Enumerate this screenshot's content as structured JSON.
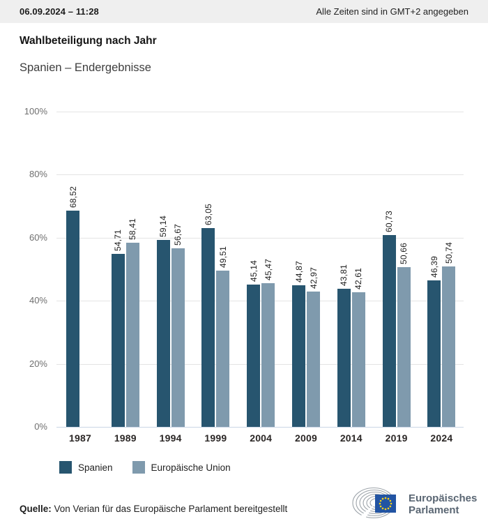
{
  "header": {
    "datetime": "06.09.2024 – 11:28",
    "timezone_note": "Alle Zeiten sind in GMT+2 angegeben"
  },
  "title": "Wahlbeteiligung nach Jahr",
  "subtitle": "Spanien – Endergebnisse",
  "chart_data": {
    "type": "bar",
    "title": "Wahlbeteiligung nach Jahr",
    "subtitle": "Spanien – Endergebnisse",
    "categories": [
      "1987",
      "1989",
      "1994",
      "1999",
      "2004",
      "2009",
      "2014",
      "2019",
      "2024"
    ],
    "series": [
      {
        "name": "Spanien",
        "color": "#27556f",
        "values": [
          68.52,
          54.71,
          59.14,
          63.05,
          45.14,
          44.87,
          43.81,
          60.73,
          46.39
        ],
        "labels": [
          "68,52",
          "54,71",
          "59,14",
          "63,05",
          "45,14",
          "44,87",
          "43,81",
          "60,73",
          "46,39"
        ]
      },
      {
        "name": "Europäische Union",
        "color": "#7f9aad",
        "values": [
          null,
          58.41,
          56.67,
          49.51,
          45.47,
          42.97,
          42.61,
          50.66,
          50.74
        ],
        "labels": [
          null,
          "58,41",
          "56,67",
          "49,51",
          "45,47",
          "42,97",
          "42,61",
          "50,66",
          "50,74"
        ]
      }
    ],
    "y_ticks": [
      "0%",
      "20%",
      "40%",
      "60%",
      "80%",
      "100%"
    ],
    "ylim": [
      0,
      100
    ],
    "grid": true,
    "value_labels_rotated": true,
    "legend_position": "bottom"
  },
  "legend": {
    "items": [
      {
        "label": "Spanien",
        "color": "#27556f"
      },
      {
        "label": "Europäische Union",
        "color": "#7f9aad"
      }
    ]
  },
  "footer": {
    "source_label": "Quelle:",
    "source_text": "Von Verian für das Europäische Parlament bereitgestellt",
    "logo_line1": "Europäisches",
    "logo_line2": "Parlament"
  }
}
